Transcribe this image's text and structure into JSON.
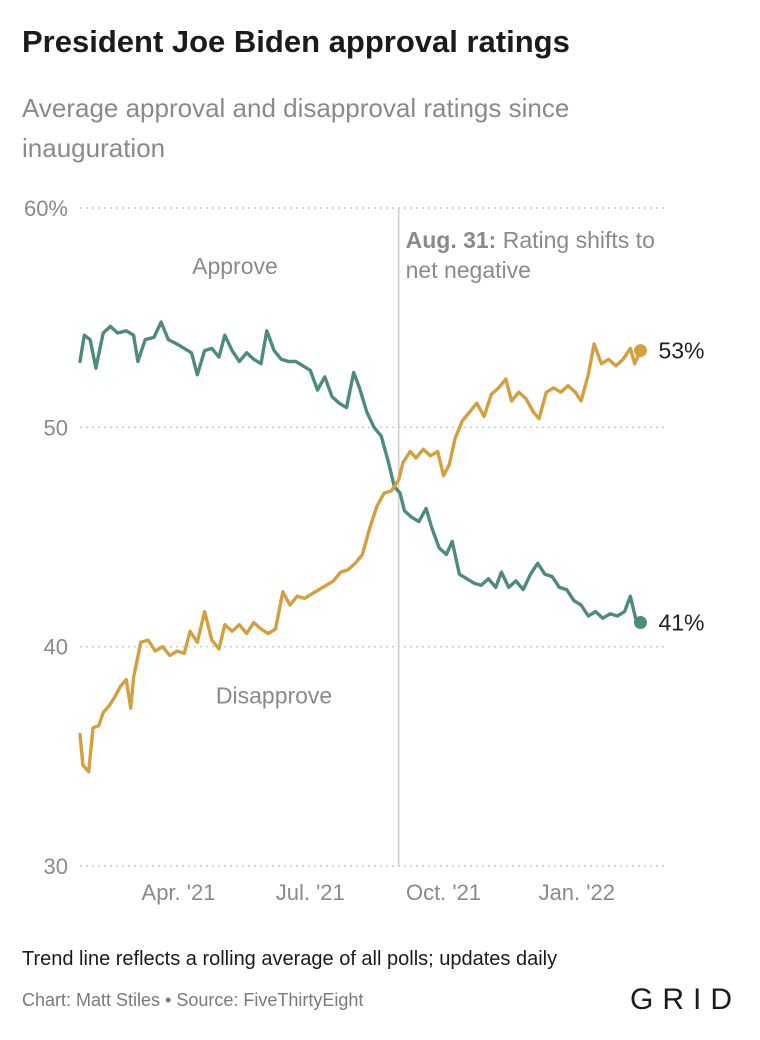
{
  "header": {
    "title": "President Joe Biden approval ratings",
    "subtitle": "Average approval and disapproval ratings since inauguration"
  },
  "footer": {
    "note": "Trend line reflects a rolling average of all polls; updates daily",
    "credit": "Chart: Matt Stiles • Source: FiveThirtyEight",
    "logo": "GRID"
  },
  "colors": {
    "approve": "#4e8b7f",
    "disapprove": "#d4a03f",
    "grid": "#c9c9c9",
    "annotation_line": "#cfcfcf"
  },
  "chart_data": {
    "type": "line",
    "title": "President Joe Biden approval ratings",
    "subtitle": "Average approval and disapproval ratings since inauguration",
    "xlabel": "",
    "ylabel": "",
    "ylim": [
      30,
      60
    ],
    "xlim": [
      "2021-01-23",
      "2022-03-05"
    ],
    "y_ticks": [
      {
        "value": 60,
        "label": "60%"
      },
      {
        "value": 50,
        "label": "50"
      },
      {
        "value": 40,
        "label": "40"
      },
      {
        "value": 30,
        "label": "30"
      }
    ],
    "x_ticks": [
      {
        "date": "2021-04-01",
        "label": "Apr. '21"
      },
      {
        "date": "2021-07-01",
        "label": "Jul. '21"
      },
      {
        "date": "2021-10-01",
        "label": "Oct. '21"
      },
      {
        "date": "2022-01-01",
        "label": "Jan. '22"
      }
    ],
    "grid": "horizontal dotted",
    "legend": "direct labels",
    "annotation": {
      "date": "2021-08-31",
      "bold": "Aug. 31:",
      "text_line1": "Rating shifts to",
      "text_line2": "net negative"
    },
    "series": [
      {
        "name": "Approve",
        "end_label": "41%",
        "points": [
          [
            "2021-01-23",
            53.0
          ],
          [
            "2021-01-26",
            54.2
          ],
          [
            "2021-01-30",
            54.0
          ],
          [
            "2021-02-03",
            52.7
          ],
          [
            "2021-02-08",
            54.3
          ],
          [
            "2021-02-13",
            54.6
          ],
          [
            "2021-02-18",
            54.3
          ],
          [
            "2021-02-24",
            54.4
          ],
          [
            "2021-03-01",
            54.2
          ],
          [
            "2021-03-04",
            53.0
          ],
          [
            "2021-03-09",
            54.0
          ],
          [
            "2021-03-15",
            54.1
          ],
          [
            "2021-03-20",
            54.8
          ],
          [
            "2021-03-25",
            54.0
          ],
          [
            "2021-03-31",
            53.8
          ],
          [
            "2021-04-05",
            53.6
          ],
          [
            "2021-04-10",
            53.4
          ],
          [
            "2021-04-14",
            52.4
          ],
          [
            "2021-04-19",
            53.5
          ],
          [
            "2021-04-24",
            53.6
          ],
          [
            "2021-04-29",
            53.2
          ],
          [
            "2021-05-03",
            54.2
          ],
          [
            "2021-05-08",
            53.5
          ],
          [
            "2021-05-13",
            53.0
          ],
          [
            "2021-05-18",
            53.4
          ],
          [
            "2021-05-23",
            53.1
          ],
          [
            "2021-05-28",
            52.9
          ],
          [
            "2021-06-01",
            54.4
          ],
          [
            "2021-06-06",
            53.5
          ],
          [
            "2021-06-11",
            53.1
          ],
          [
            "2021-06-16",
            53.0
          ],
          [
            "2021-06-21",
            53.0
          ],
          [
            "2021-06-26",
            52.8
          ],
          [
            "2021-07-01",
            52.6
          ],
          [
            "2021-07-06",
            51.7
          ],
          [
            "2021-07-11",
            52.3
          ],
          [
            "2021-07-16",
            51.4
          ],
          [
            "2021-07-21",
            51.1
          ],
          [
            "2021-07-26",
            50.9
          ],
          [
            "2021-07-31",
            52.5
          ],
          [
            "2021-08-04",
            51.8
          ],
          [
            "2021-08-09",
            50.7
          ],
          [
            "2021-08-14",
            50.0
          ],
          [
            "2021-08-19",
            49.6
          ],
          [
            "2021-08-24",
            48.4
          ],
          [
            "2021-08-28",
            47.3
          ],
          [
            "2021-09-01",
            47.0
          ],
          [
            "2021-09-04",
            46.2
          ],
          [
            "2021-09-09",
            45.9
          ],
          [
            "2021-09-14",
            45.7
          ],
          [
            "2021-09-19",
            46.3
          ],
          [
            "2021-09-23",
            45.4
          ],
          [
            "2021-09-28",
            44.5
          ],
          [
            "2021-10-03",
            44.2
          ],
          [
            "2021-10-07",
            44.8
          ],
          [
            "2021-10-12",
            43.3
          ],
          [
            "2021-10-17",
            43.1
          ],
          [
            "2021-10-22",
            42.9
          ],
          [
            "2021-10-27",
            42.8
          ],
          [
            "2021-11-01",
            43.1
          ],
          [
            "2021-11-06",
            42.7
          ],
          [
            "2021-11-10",
            43.4
          ],
          [
            "2021-11-15",
            42.7
          ],
          [
            "2021-11-20",
            43.0
          ],
          [
            "2021-11-25",
            42.6
          ],
          [
            "2021-11-30",
            43.3
          ],
          [
            "2021-12-05",
            43.8
          ],
          [
            "2021-12-10",
            43.3
          ],
          [
            "2021-12-15",
            43.2
          ],
          [
            "2021-12-20",
            42.7
          ],
          [
            "2021-12-25",
            42.6
          ],
          [
            "2021-12-30",
            42.1
          ],
          [
            "2022-01-04",
            41.9
          ],
          [
            "2022-01-09",
            41.4
          ],
          [
            "2022-01-14",
            41.6
          ],
          [
            "2022-01-19",
            41.3
          ],
          [
            "2022-01-24",
            41.5
          ],
          [
            "2022-01-29",
            41.4
          ],
          [
            "2022-02-03",
            41.6
          ],
          [
            "2022-02-07",
            42.3
          ],
          [
            "2022-02-11",
            41.2
          ],
          [
            "2022-02-14",
            41.1
          ]
        ]
      },
      {
        "name": "Disapprove",
        "end_label": "53%",
        "points": [
          [
            "2021-01-23",
            36.0
          ],
          [
            "2021-01-25",
            34.6
          ],
          [
            "2021-01-29",
            34.3
          ],
          [
            "2021-02-01",
            36.3
          ],
          [
            "2021-02-05",
            36.4
          ],
          [
            "2021-02-08",
            37.0
          ],
          [
            "2021-02-12",
            37.3
          ],
          [
            "2021-02-16",
            37.7
          ],
          [
            "2021-02-20",
            38.2
          ],
          [
            "2021-02-24",
            38.5
          ],
          [
            "2021-02-27",
            37.2
          ],
          [
            "2021-03-01",
            38.6
          ],
          [
            "2021-03-06",
            40.2
          ],
          [
            "2021-03-11",
            40.3
          ],
          [
            "2021-03-16",
            39.8
          ],
          [
            "2021-03-21",
            40.0
          ],
          [
            "2021-03-26",
            39.6
          ],
          [
            "2021-03-31",
            39.8
          ],
          [
            "2021-04-05",
            39.7
          ],
          [
            "2021-04-09",
            40.7
          ],
          [
            "2021-04-14",
            40.2
          ],
          [
            "2021-04-19",
            41.6
          ],
          [
            "2021-04-24",
            40.3
          ],
          [
            "2021-04-29",
            39.9
          ],
          [
            "2021-05-03",
            41.0
          ],
          [
            "2021-05-08",
            40.7
          ],
          [
            "2021-05-13",
            41.0
          ],
          [
            "2021-05-18",
            40.6
          ],
          [
            "2021-05-23",
            41.1
          ],
          [
            "2021-05-28",
            40.8
          ],
          [
            "2021-06-02",
            40.6
          ],
          [
            "2021-06-07",
            40.8
          ],
          [
            "2021-06-12",
            42.5
          ],
          [
            "2021-06-17",
            41.9
          ],
          [
            "2021-06-22",
            42.3
          ],
          [
            "2021-06-27",
            42.2
          ],
          [
            "2021-07-02",
            42.4
          ],
          [
            "2021-07-07",
            42.6
          ],
          [
            "2021-07-12",
            42.8
          ],
          [
            "2021-07-17",
            43.0
          ],
          [
            "2021-07-22",
            43.4
          ],
          [
            "2021-07-27",
            43.5
          ],
          [
            "2021-08-01",
            43.8
          ],
          [
            "2021-08-06",
            44.2
          ],
          [
            "2021-08-11",
            45.4
          ],
          [
            "2021-08-16",
            46.4
          ],
          [
            "2021-08-21",
            47.0
          ],
          [
            "2021-08-26",
            47.1
          ],
          [
            "2021-08-31",
            47.6
          ],
          [
            "2021-09-03",
            48.4
          ],
          [
            "2021-09-08",
            48.9
          ],
          [
            "2021-09-12",
            48.6
          ],
          [
            "2021-09-17",
            49.0
          ],
          [
            "2021-09-22",
            48.7
          ],
          [
            "2021-09-27",
            48.9
          ],
          [
            "2021-10-01",
            47.8
          ],
          [
            "2021-10-05",
            48.3
          ],
          [
            "2021-10-09",
            49.5
          ],
          [
            "2021-10-14",
            50.3
          ],
          [
            "2021-10-19",
            50.7
          ],
          [
            "2021-10-24",
            51.1
          ],
          [
            "2021-10-29",
            50.5
          ],
          [
            "2021-11-03",
            51.5
          ],
          [
            "2021-11-08",
            51.8
          ],
          [
            "2021-11-13",
            52.2
          ],
          [
            "2021-11-17",
            51.2
          ],
          [
            "2021-11-22",
            51.6
          ],
          [
            "2021-11-27",
            51.3
          ],
          [
            "2021-12-02",
            50.7
          ],
          [
            "2021-12-06",
            50.4
          ],
          [
            "2021-12-11",
            51.6
          ],
          [
            "2021-12-16",
            51.8
          ],
          [
            "2021-12-21",
            51.6
          ],
          [
            "2021-12-26",
            51.9
          ],
          [
            "2021-12-31",
            51.6
          ],
          [
            "2022-01-04",
            51.2
          ],
          [
            "2022-01-09",
            52.4
          ],
          [
            "2022-01-13",
            53.8
          ],
          [
            "2022-01-18",
            52.9
          ],
          [
            "2022-01-23",
            53.1
          ],
          [
            "2022-01-28",
            52.8
          ],
          [
            "2022-02-02",
            53.1
          ],
          [
            "2022-02-07",
            53.6
          ],
          [
            "2022-02-10",
            52.9
          ],
          [
            "2022-02-14",
            53.5
          ]
        ]
      }
    ]
  }
}
